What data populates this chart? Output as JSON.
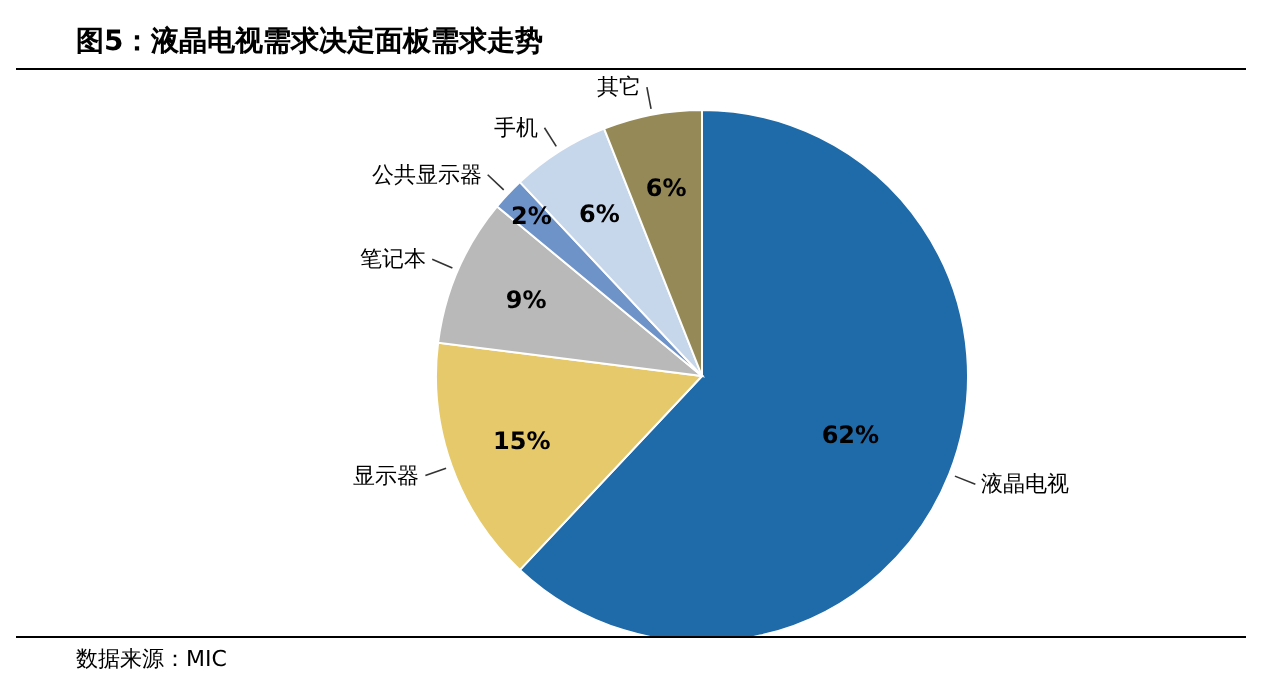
{
  "chart_data": {
    "type": "pie",
    "title": "图5：液晶电视需求决定面板需求走势",
    "categories": [
      "液晶电视",
      "显示器",
      "笔记本",
      "公共显示器",
      "手机",
      "其它"
    ],
    "values": [
      62,
      15,
      9,
      2,
      6,
      6
    ],
    "value_labels": [
      "62%",
      "15%",
      "9%",
      "2%",
      "6%",
      "6%"
    ],
    "colors": [
      "#1f6aa8",
      "#e5c96b",
      "#b9b9b9",
      "#6e93c9",
      "#c6d6eb",
      "#958a57"
    ],
    "annotations": [
      "数据来源：MIC"
    ]
  }
}
